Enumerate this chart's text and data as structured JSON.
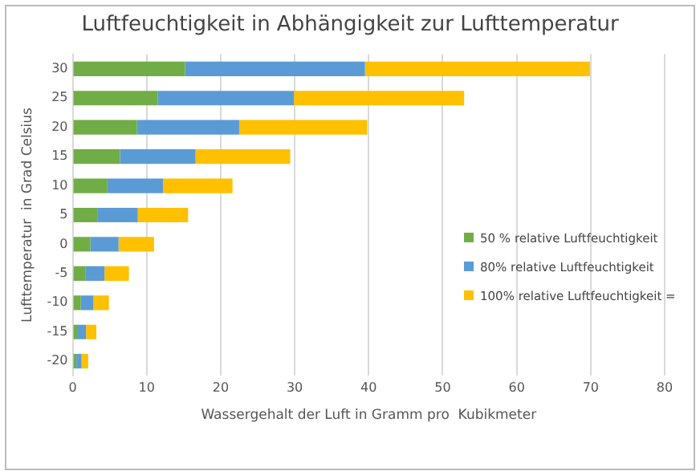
{
  "chart_data": {
    "type": "bar",
    "orientation": "horizontal",
    "stacked": true,
    "title": "Luftfeuchtigkeit in Abhängigkeit zur Lufttemperatur",
    "xlabel": "Wassergehalt der Luft in Gramm pro  Kubikmeter",
    "ylabel": "Lufttemperatur  in Grad Celsius",
    "categories": [
      "30",
      "25",
      "20",
      "15",
      "10",
      "5",
      "0",
      "-5",
      "-10",
      "-15",
      "-20"
    ],
    "series": [
      {
        "name": "50 % relative Luftfeuchtigkeit",
        "color": "#70ad47",
        "values": [
          15.2,
          11.5,
          8.7,
          6.4,
          4.7,
          3.4,
          2.4,
          1.7,
          1.1,
          0.7,
          0.5
        ]
      },
      {
        "name": "80% relative Luftfeuchtigkeit",
        "color": "#5b9bd5",
        "values": [
          24.3,
          18.4,
          13.8,
          10.2,
          7.5,
          5.4,
          3.8,
          2.6,
          1.7,
          1.1,
          0.7
        ]
      },
      {
        "name": "100% relative Luftfeuchtigkeit =",
        "color": "#ffc000",
        "values": [
          30.4,
          23.0,
          17.3,
          12.8,
          9.4,
          6.8,
          4.8,
          3.3,
          2.1,
          1.4,
          0.9
        ]
      }
    ],
    "xlim": [
      0,
      80
    ],
    "xticks": [
      0,
      10,
      20,
      30,
      40,
      50,
      60,
      70,
      80
    ],
    "grid": "x",
    "legend": "right"
  }
}
